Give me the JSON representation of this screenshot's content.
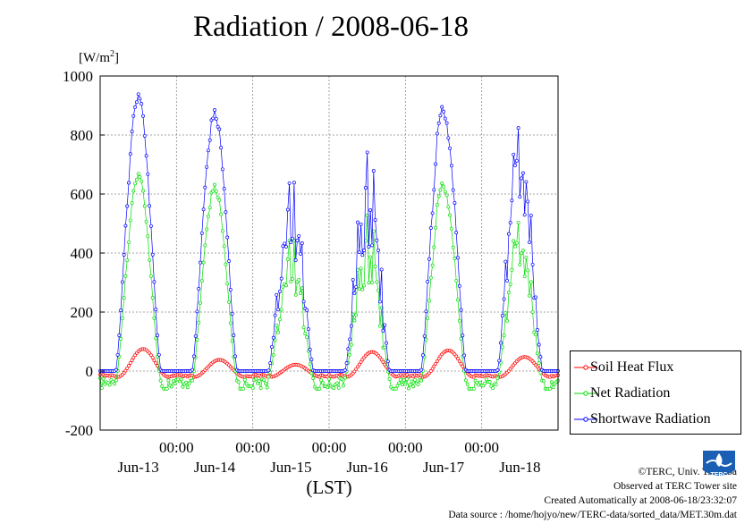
{
  "chart_data": {
    "type": "line",
    "title": "Radiation / 2008-06-18",
    "ylabel": "[W/m²]",
    "xlabel": "(LST)",
    "ylim": [
      -200,
      1000
    ],
    "yticks": [
      -200,
      0,
      200,
      400,
      600,
      800,
      1000
    ],
    "xlim_days": [
      0,
      6
    ],
    "x_time_labels": [
      "00:00",
      "00:00",
      "00:00",
      "00:00",
      "00:00"
    ],
    "x_day_labels": [
      "Jun-13",
      "Jun-14",
      "Jun-15",
      "Jun-16",
      "Jun-17",
      "Jun-18"
    ],
    "grid": true,
    "legend_position": "right-bottom",
    "series": [
      {
        "name": "Soil Heat Flux",
        "color": "#ff0000",
        "daily_peak": [
          75,
          38,
          22,
          65,
          70,
          48
        ],
        "night_min": -20
      },
      {
        "name": "Net Radiation",
        "color": "#00dd00",
        "daily_peak": [
          670,
          635,
          490,
          590,
          665,
          535
        ],
        "night_min": -60
      },
      {
        "name": "Shortwave Radiation",
        "color": "#0000ff",
        "daily_peak": [
          940,
          890,
          705,
          830,
          935,
          875
        ],
        "night_min": 0
      }
    ]
  },
  "credits": {
    "line1": "©TERC, Univ. Tsukuba",
    "line2": "Observed at TERC Tower site",
    "line3": "Created Automatically at 2008-06-18/23:32:07",
    "line4": "Data source : /home/hojyo/new/TERC-data/sorted_data/MET.30m.dat"
  },
  "logo": {
    "text": "TERC"
  }
}
